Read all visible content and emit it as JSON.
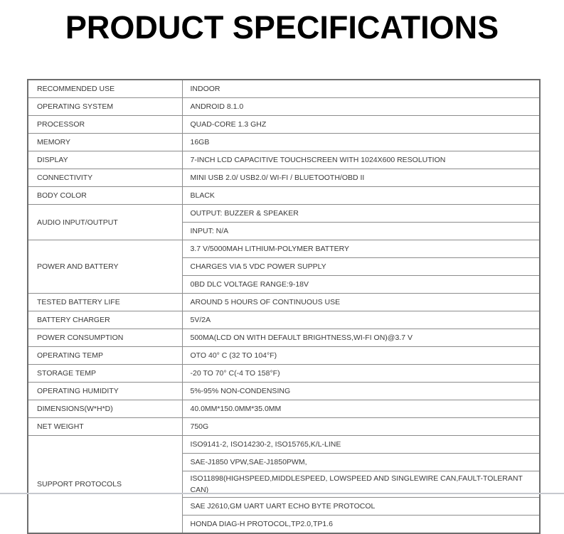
{
  "page": {
    "title": "PRODUCT SPECIFICATIONS"
  },
  "colors": {
    "border_outer": "#6e6e6e",
    "border_inner": "#8c8c8c",
    "text_color": "#3a3a3a",
    "bottom_bar_color": "#c6c9ce"
  },
  "table": {
    "rows": [
      {
        "label": "RECOMMENDED USE",
        "values": [
          "INDOOR"
        ]
      },
      {
        "label": "OPERATING SYSTEM",
        "values": [
          "ANDROID 8.1.0"
        ]
      },
      {
        "label": "PROCESSOR",
        "values": [
          "QUAD-CORE 1.3 GHZ"
        ]
      },
      {
        "label": "MEMORY",
        "values": [
          "16GB"
        ]
      },
      {
        "label": "DISPLAY",
        "values": [
          "7-INCH LCD CAPACITIVE TOUCHSCREEN WITH 1024X600 RESOLUTION"
        ]
      },
      {
        "label": "CONNECTIVITY",
        "values": [
          "MINI USB 2.0/ USB2.0/ WI-FI / BLUETOOTH/OBD II"
        ]
      },
      {
        "label": "BODY COLOR",
        "values": [
          "BLACK"
        ]
      },
      {
        "label": "AUDIO INPUT/OUTPUT",
        "values": [
          "OUTPUT: BUZZER & SPEAKER",
          "INPUT: N/A"
        ]
      },
      {
        "label": "POWER AND BATTERY",
        "values": [
          "3.7 V/5000MAH LITHIUM-POLYMER BATTERY",
          "CHARGES VIA 5 VDC POWER SUPPLY",
          "0BD DLC VOLTAGE RANGE:9-18V"
        ]
      },
      {
        "label": "TESTED BATTERY LIFE",
        "values": [
          "AROUND 5 HOURS OF CONTINUOUS USE"
        ]
      },
      {
        "label": "BATTERY CHARGER",
        "values": [
          "5V/2A"
        ]
      },
      {
        "label": "POWER CONSUMPTION",
        "values": [
          "500MA(LCD ON WITH DEFAULT BRIGHTNESS,WI-FI ON)@3.7 V"
        ]
      },
      {
        "label": "OPERATING TEMP",
        "values": [
          "OTO 40° C (32 TO 104°F)"
        ]
      },
      {
        "label": "STORAGE TEMP",
        "values": [
          "-20 TO 70° C(-4 TO 158°F)"
        ]
      },
      {
        "label": "OPERATING HUMIDITY",
        "values": [
          "5%-95% NON-CONDENSING"
        ]
      },
      {
        "label": "DIMENSIONS(W*H*D)",
        "values": [
          "40.0MM*150.0MM*35.0MM"
        ]
      },
      {
        "label": "NET WEIGHT",
        "values": [
          "750G"
        ]
      },
      {
        "label": "SUPPORT PROTOCOLS",
        "values": [
          "ISO9141-2, ISO14230-2, ISO15765,K/L-LINE",
          "SAE-J1850 VPW,SAE-J1850PWM,",
          "ISO11898(HIGHSPEED,MIDDLESPEED, LOWSPEED AND SINGLEWIRE CAN,FAULT-TOLERANT CAN)",
          "SAE J2610,GM UART UART ECHO BYTE PROTOCOL",
          "HONDA DIAG-H PROTOCOL,TP2.0,TP1.6"
        ]
      }
    ]
  }
}
